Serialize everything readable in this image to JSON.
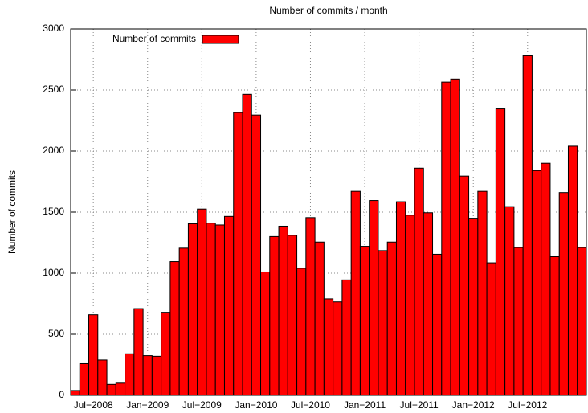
{
  "chart_data": {
    "type": "bar",
    "title": "Number of commits / month",
    "y_label": "Number of commits",
    "categories": [
      null,
      null,
      "Jul−2008",
      null,
      null,
      null,
      null,
      null,
      "Jan−2009",
      null,
      null,
      null,
      null,
      null,
      "Jul−2009",
      null,
      null,
      null,
      null,
      null,
      "Jan−2010",
      null,
      null,
      null,
      null,
      null,
      "Jul−2010",
      null,
      null,
      null,
      null,
      null,
      "Jan−2011",
      null,
      null,
      null,
      null,
      null,
      "Jul−2011",
      null,
      null,
      null,
      null,
      null,
      "Jan−2012",
      null,
      null,
      null,
      null,
      null,
      "Jul−2012",
      null,
      null,
      null,
      null,
      null,
      null
    ],
    "series": [
      {
        "name": "Number of commits",
        "color": "#ff0000",
        "values": [
          40,
          260,
          660,
          290,
          90,
          100,
          340,
          710,
          325,
          320,
          680,
          1095,
          1205,
          1405,
          1525,
          1410,
          1395,
          1465,
          2315,
          2465,
          2295,
          1010,
          1300,
          1385,
          1310,
          1040,
          1455,
          1255,
          790,
          765,
          945,
          1670,
          1220,
          1595,
          1185,
          1255,
          1585,
          1475,
          1860,
          1495,
          1155,
          2565,
          2590,
          1795,
          1450,
          1670,
          1085,
          2345,
          1545,
          1210,
          2780,
          1840,
          1900,
          1135,
          1660,
          2040,
          1210
        ]
      }
    ],
    "ylim": [
      0,
      3000
    ],
    "yticks": [
      0,
      500,
      1000,
      1500,
      2000,
      2500,
      3000
    ],
    "grid": true,
    "legend": "top-left"
  }
}
